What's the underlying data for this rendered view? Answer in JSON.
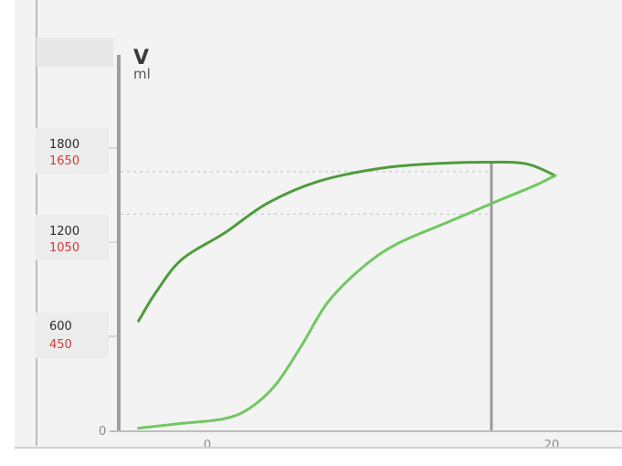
{
  "chart_data": {
    "type": "line",
    "title": "",
    "ylabel": "V",
    "yunit": "ml",
    "xlabel": "",
    "xlim": [
      -4.0,
      21.5
    ],
    "ylim": [
      0,
      1800
    ],
    "grid": false,
    "x_ticks": [
      {
        "value": 0,
        "label": "0"
      },
      {
        "value": 20,
        "label": "20"
      }
    ],
    "y_ticks": [
      {
        "value": 0,
        "label": "0",
        "label_red": ""
      },
      {
        "value": 600,
        "label": "600",
        "label_red": "450"
      },
      {
        "value": 1200,
        "label": "1200",
        "label_red": "1050"
      },
      {
        "value": 1800,
        "label": "1800",
        "label_red": "1650"
      }
    ],
    "reference_lines": [
      {
        "orientation": "horizontal",
        "y": 1650,
        "style": "dotted"
      },
      {
        "orientation": "horizontal",
        "y": 1380,
        "style": "dotted"
      },
      {
        "orientation": "vertical",
        "x": 16.5,
        "style": "solid"
      }
    ],
    "series": [
      {
        "color": "#4e9b3c",
        "x": [
          -4.0,
          -3.0,
          -1.5,
          1.0,
          3.5,
          6.5,
          10.0,
          13.0,
          16.0,
          18.5,
          20.2
        ],
        "y": [
          700,
          880,
          1090,
          1260,
          1450,
          1590,
          1670,
          1700,
          1710,
          1700,
          1625
        ]
      },
      {
        "color": "#72c761",
        "x": [
          -4.0,
          -1.5,
          1.0,
          2.5,
          4.0,
          5.5,
          7.0,
          9.0,
          11.0,
          14.0,
          17.0,
          19.0,
          20.2
        ],
        "y": [
          20,
          50,
          80,
          150,
          300,
          550,
          820,
          1040,
          1190,
          1330,
          1470,
          1560,
          1625
        ]
      }
    ],
    "colors": {
      "background": "#f3f3f3",
      "axis": "#9e9e9e",
      "frame": "#bdbdbd",
      "label_box": "#ececec",
      "label_black": "#2a2a2a",
      "label_red": "#d23a3a",
      "reference": "#c4c4c4"
    }
  }
}
